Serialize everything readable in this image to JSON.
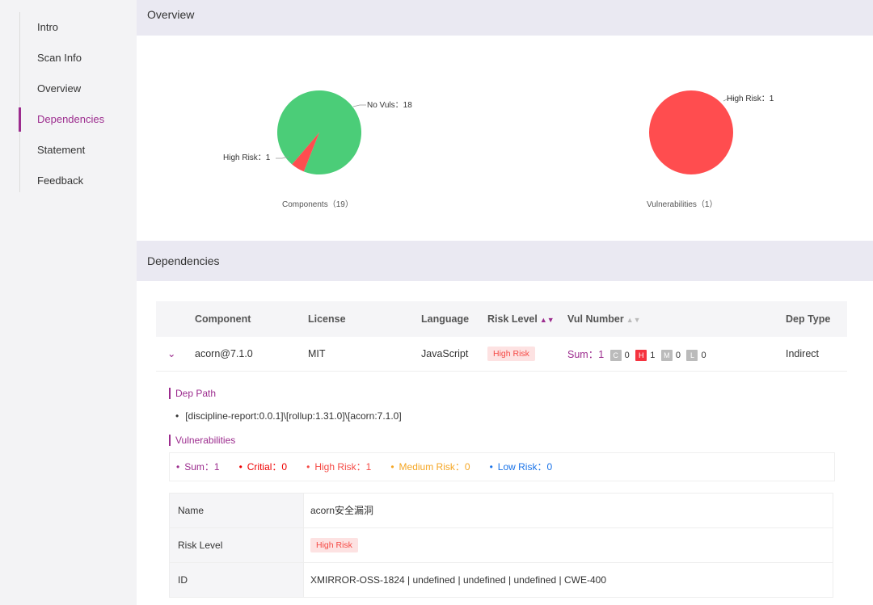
{
  "sidebar": {
    "items": [
      {
        "label": "Intro"
      },
      {
        "label": "Scan Info"
      },
      {
        "label": "Overview"
      },
      {
        "label": "Dependencies"
      },
      {
        "label": "Statement"
      },
      {
        "label": "Feedback"
      }
    ],
    "active_index": 3
  },
  "overview": {
    "title": "Overview",
    "components_pie": {
      "caption": "Components（19）",
      "no_vuls_label": "No Vuls：18",
      "high_risk_label": "High Risk：1"
    },
    "vulnerabilities_pie": {
      "caption": "Vulnerabilities（1）",
      "high_risk_label": "High Risk：1"
    }
  },
  "chart_data": [
    {
      "type": "pie",
      "categories": [
        "No Vuls",
        "High Risk"
      ],
      "values": [
        18,
        1
      ],
      "colors": [
        "#4bcd78",
        "#ff4d4f"
      ],
      "caption": "Components（19）"
    },
    {
      "type": "pie",
      "categories": [
        "High Risk"
      ],
      "values": [
        1
      ],
      "colors": [
        "#ff4d4f"
      ],
      "caption": "Vulnerabilities（1）"
    }
  ],
  "dependencies": {
    "title": "Dependencies",
    "columns": {
      "component": "Component",
      "license": "License",
      "language": "Language",
      "risk_level": "Risk Level",
      "vul_number": "Vul Number",
      "dep_type": "Dep Type"
    },
    "row": {
      "component": "acorn@7.1.0",
      "license": "MIT",
      "language": "JavaScript",
      "risk_level": "High Risk",
      "vul_sum": "Sum：1",
      "c_label": "C",
      "c_count": "0",
      "h_label": "H",
      "h_count": "1",
      "m_label": "M",
      "m_count": "0",
      "l_label": "L",
      "l_count": "0",
      "dep_type": "Indirect"
    },
    "detail": {
      "dep_path_title": "Dep Path",
      "dep_path": "[discipline-report:0.0.1]\\[rollup:1.31.0]\\[acorn:7.1.0]",
      "vulnerabilities_title": "Vulnerabilities",
      "summary": {
        "sum": "Sum：1",
        "critical": "Critial：0",
        "high": "High Risk：1",
        "medium": "Medium Risk：0",
        "low": "Low Risk：0"
      },
      "table": [
        {
          "key": "Name",
          "value": "acorn安全漏洞"
        },
        {
          "key": "Risk Level",
          "value": "High Risk"
        },
        {
          "key": "ID",
          "value": "XMIRROR-OSS-1824 | undefined | undefined | undefined | CWE-400"
        }
      ]
    }
  },
  "colors": {
    "accent": "#9c2c8e",
    "high_risk": "#ff4d4f",
    "no_vuls": "#4bcd78"
  }
}
